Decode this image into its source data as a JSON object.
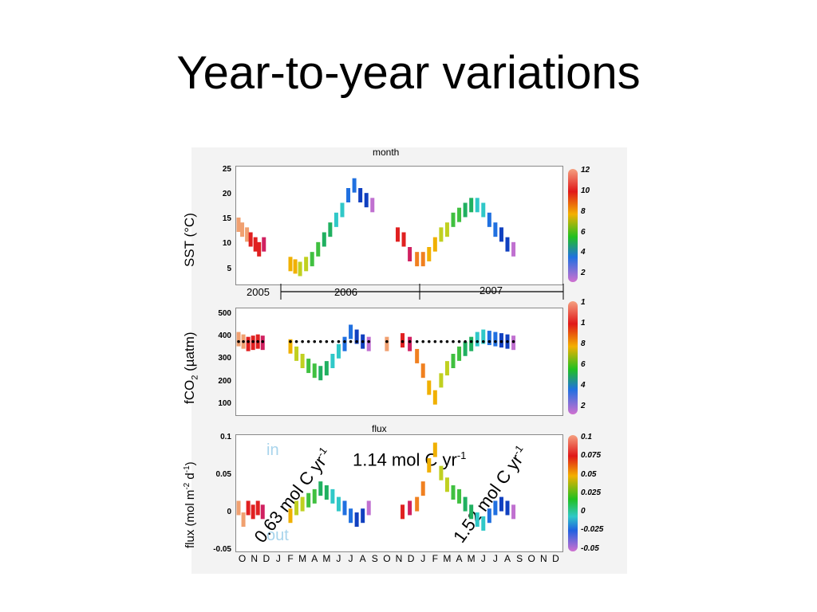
{
  "slide": {
    "title": "Year-to-year variations"
  },
  "figure": {
    "top_label": "month",
    "flux_label": "flux",
    "sst_ylabel": "SST (°C)",
    "fco2_ylabel_pre": "fCO",
    "fco2_ylabel_sub": "2",
    "fco2_ylabel_post": " (µatm)",
    "flux_ylabel_pre": "flux (mol m",
    "flux_ylabel_sup1": "-2",
    "flux_ylabel_mid": " d",
    "flux_ylabel_sup2": "-1",
    "flux_ylabel_post": ")",
    "years": [
      "2005",
      "2006",
      "2007"
    ],
    "in_label": "in",
    "out_label": "out",
    "anno_1_pre": "0.63 mol C yr",
    "anno_1_sup": "-1",
    "anno_2_pre": "1.14 mol C yr",
    "anno_2_sup": "-1",
    "anno_3_pre": "1.52 mol C yr",
    "anno_3_sup": "-1",
    "colorbar_month_ticks": [
      "12",
      "10",
      "8",
      "6",
      "4",
      "2"
    ],
    "colorbar_fco2_ticks": [
      "1",
      "1",
      "8",
      "6",
      "4",
      "2"
    ],
    "colorbar_flux_ticks": [
      "0.1",
      "0.075",
      "0.05",
      "0.025",
      "0",
      "-0.025",
      "-0.05"
    ]
  },
  "chart_data": [
    {
      "type": "scatter",
      "name_hidden": "",
      "ylabel": "SST (°C)",
      "yticks": [
        "25",
        "20",
        "15",
        "10",
        "5"
      ],
      "ylim": [
        2,
        26
      ],
      "x_months": [
        "O",
        "N",
        "D",
        "J",
        "F",
        "M",
        "A",
        "M",
        "J",
        "J",
        "A",
        "S",
        "O",
        "N",
        "D",
        "J",
        "F",
        "M",
        "A",
        "M",
        "J",
        "J",
        "A",
        "S",
        "O",
        "N",
        "D"
      ],
      "points": [
        [
          0.2,
          14
        ],
        [
          0.5,
          13
        ],
        [
          0.9,
          12
        ],
        [
          1.2,
          11
        ],
        [
          1.6,
          10
        ],
        [
          1.9,
          9
        ],
        [
          2.3,
          10
        ],
        [
          4.5,
          6
        ],
        [
          4.9,
          5.5
        ],
        [
          5.3,
          5
        ],
        [
          5.8,
          6
        ],
        [
          6.3,
          7
        ],
        [
          6.8,
          9
        ],
        [
          7.3,
          11
        ],
        [
          7.8,
          13
        ],
        [
          8.3,
          15
        ],
        [
          8.8,
          17
        ],
        [
          9.3,
          20
        ],
        [
          9.8,
          22
        ],
        [
          10.3,
          20
        ],
        [
          10.8,
          19
        ],
        [
          11.3,
          18
        ],
        [
          13.4,
          12
        ],
        [
          13.9,
          11
        ],
        [
          14.4,
          8
        ],
        [
          15.0,
          7
        ],
        [
          15.5,
          7
        ],
        [
          16.0,
          8
        ],
        [
          16.5,
          10
        ],
        [
          17.0,
          12
        ],
        [
          17.5,
          13
        ],
        [
          18.0,
          15
        ],
        [
          18.5,
          16
        ],
        [
          19.0,
          17
        ],
        [
          19.5,
          18
        ],
        [
          20.0,
          18
        ],
        [
          20.5,
          17
        ],
        [
          21.0,
          15
        ],
        [
          21.5,
          13
        ],
        [
          22.0,
          12
        ],
        [
          22.5,
          10
        ],
        [
          23.0,
          9
        ]
      ]
    },
    {
      "type": "scatter",
      "ylabel": "fCO2 (µatm)",
      "yticks": [
        "500",
        "400",
        "300",
        "200",
        "100"
      ],
      "ylim": [
        80,
        520
      ],
      "points": [
        [
          0.2,
          390
        ],
        [
          0.6,
          380
        ],
        [
          1.0,
          370
        ],
        [
          1.4,
          375
        ],
        [
          1.8,
          380
        ],
        [
          2.2,
          375
        ],
        [
          4.5,
          360
        ],
        [
          5.0,
          330
        ],
        [
          5.5,
          300
        ],
        [
          6.0,
          280
        ],
        [
          6.5,
          260
        ],
        [
          7.0,
          250
        ],
        [
          7.5,
          270
        ],
        [
          8.0,
          300
        ],
        [
          8.5,
          340
        ],
        [
          9.0,
          370
        ],
        [
          9.5,
          420
        ],
        [
          10.0,
          400
        ],
        [
          10.5,
          380
        ],
        [
          11.0,
          370
        ],
        [
          12.5,
          370
        ],
        [
          13.8,
          385
        ],
        [
          14.4,
          370
        ],
        [
          15.0,
          320
        ],
        [
          15.5,
          260
        ],
        [
          16.0,
          190
        ],
        [
          16.5,
          150
        ],
        [
          17.0,
          220
        ],
        [
          17.5,
          270
        ],
        [
          18.0,
          300
        ],
        [
          18.5,
          330
        ],
        [
          19.0,
          350
        ],
        [
          19.5,
          370
        ],
        [
          20.0,
          390
        ],
        [
          20.5,
          400
        ],
        [
          21.0,
          395
        ],
        [
          21.5,
          390
        ],
        [
          22.0,
          385
        ],
        [
          22.5,
          380
        ],
        [
          23.0,
          375
        ]
      ]
    },
    {
      "type": "scatter",
      "ylabel": "flux (mol m-2 d-1)",
      "yticks": [
        "0.1",
        "0.05",
        "0",
        "-0.05"
      ],
      "ylim": [
        -0.05,
        0.1
      ],
      "points": [
        [
          0.2,
          0.005
        ],
        [
          0.6,
          -0.01
        ],
        [
          1.0,
          0.005
        ],
        [
          1.4,
          0.0
        ],
        [
          1.8,
          0.005
        ],
        [
          2.2,
          0.0
        ],
        [
          4.5,
          -0.005
        ],
        [
          5.0,
          0.005
        ],
        [
          5.5,
          0.01
        ],
        [
          6.0,
          0.015
        ],
        [
          6.5,
          0.02
        ],
        [
          7.0,
          0.03
        ],
        [
          7.5,
          0.025
        ],
        [
          8.0,
          0.02
        ],
        [
          8.5,
          0.01
        ],
        [
          9.0,
          0.005
        ],
        [
          9.5,
          -0.005
        ],
        [
          10.0,
          -0.01
        ],
        [
          10.5,
          -0.005
        ],
        [
          11.0,
          0.005
        ],
        [
          13.8,
          0.0
        ],
        [
          14.4,
          0.005
        ],
        [
          15.0,
          0.01
        ],
        [
          15.5,
          0.03
        ],
        [
          16.0,
          0.06
        ],
        [
          16.5,
          0.08
        ],
        [
          17.0,
          0.05
        ],
        [
          17.5,
          0.035
        ],
        [
          18.0,
          0.025
        ],
        [
          18.5,
          0.02
        ],
        [
          19.0,
          0.01
        ],
        [
          19.5,
          0.0
        ],
        [
          20.0,
          -0.01
        ],
        [
          20.5,
          -0.015
        ],
        [
          21.0,
          -0.005
        ],
        [
          21.5,
          0.005
        ],
        [
          22.0,
          0.01
        ],
        [
          22.5,
          0.005
        ],
        [
          23.0,
          0.0
        ]
      ]
    }
  ]
}
